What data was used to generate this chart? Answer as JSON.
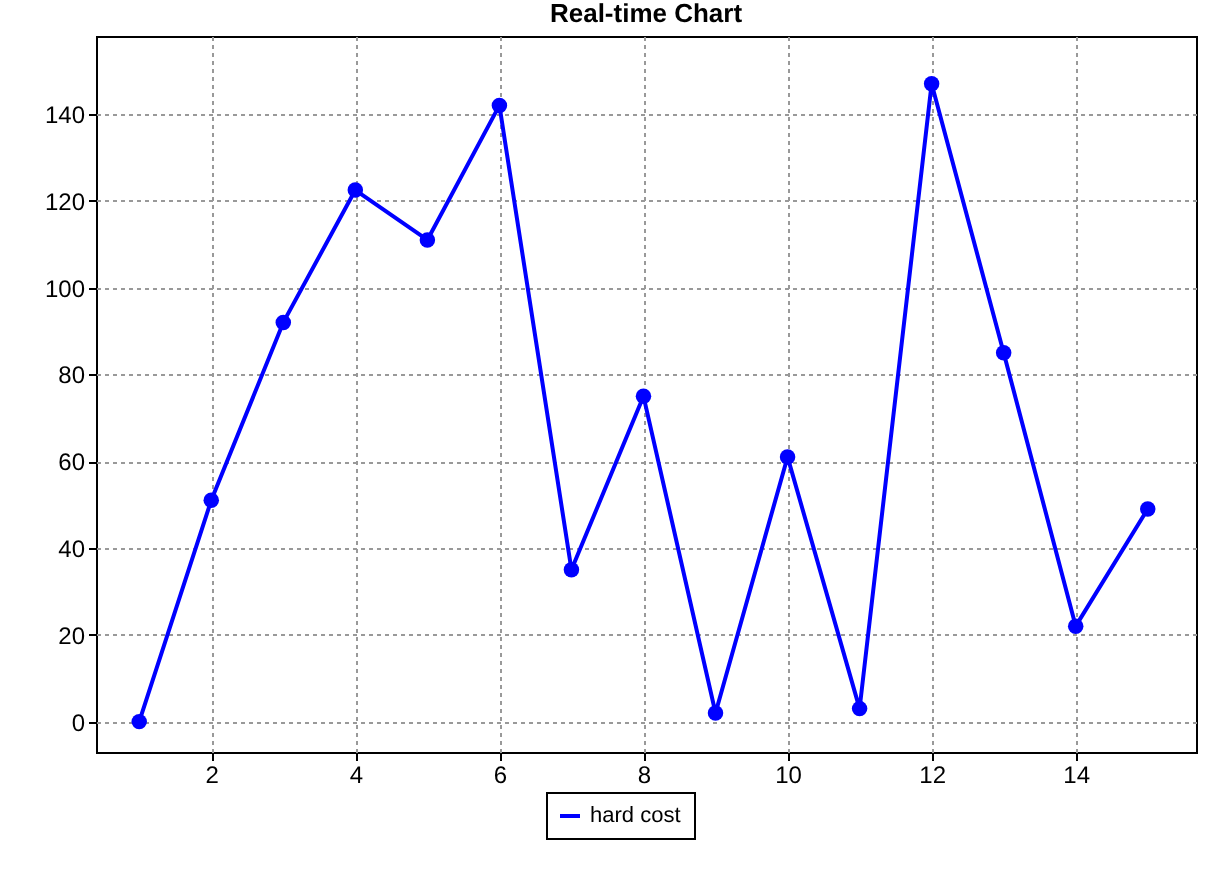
{
  "chart_data": {
    "type": "line",
    "title": "Real-time Chart",
    "x": [
      1,
      2,
      3,
      4,
      5,
      6,
      7,
      8,
      9,
      10,
      11,
      12,
      13,
      14,
      15
    ],
    "series": [
      {
        "name": "hard cost",
        "color": "#0000ff",
        "values": [
          0,
          51,
          92,
          122.5,
          111,
          142,
          35,
          75,
          2,
          61,
          3,
          147,
          85,
          22,
          49
        ]
      }
    ],
    "xlim": [
      0.4,
      15.67
    ],
    "xticks": [
      2,
      4,
      6,
      8,
      10,
      12,
      14
    ],
    "ylim": [
      -7,
      158
    ],
    "yticks": [
      0,
      20,
      40,
      60,
      80,
      100,
      120,
      140
    ],
    "grid": true,
    "legend": "bottom",
    "marker": "circle",
    "line_style": "solid"
  }
}
